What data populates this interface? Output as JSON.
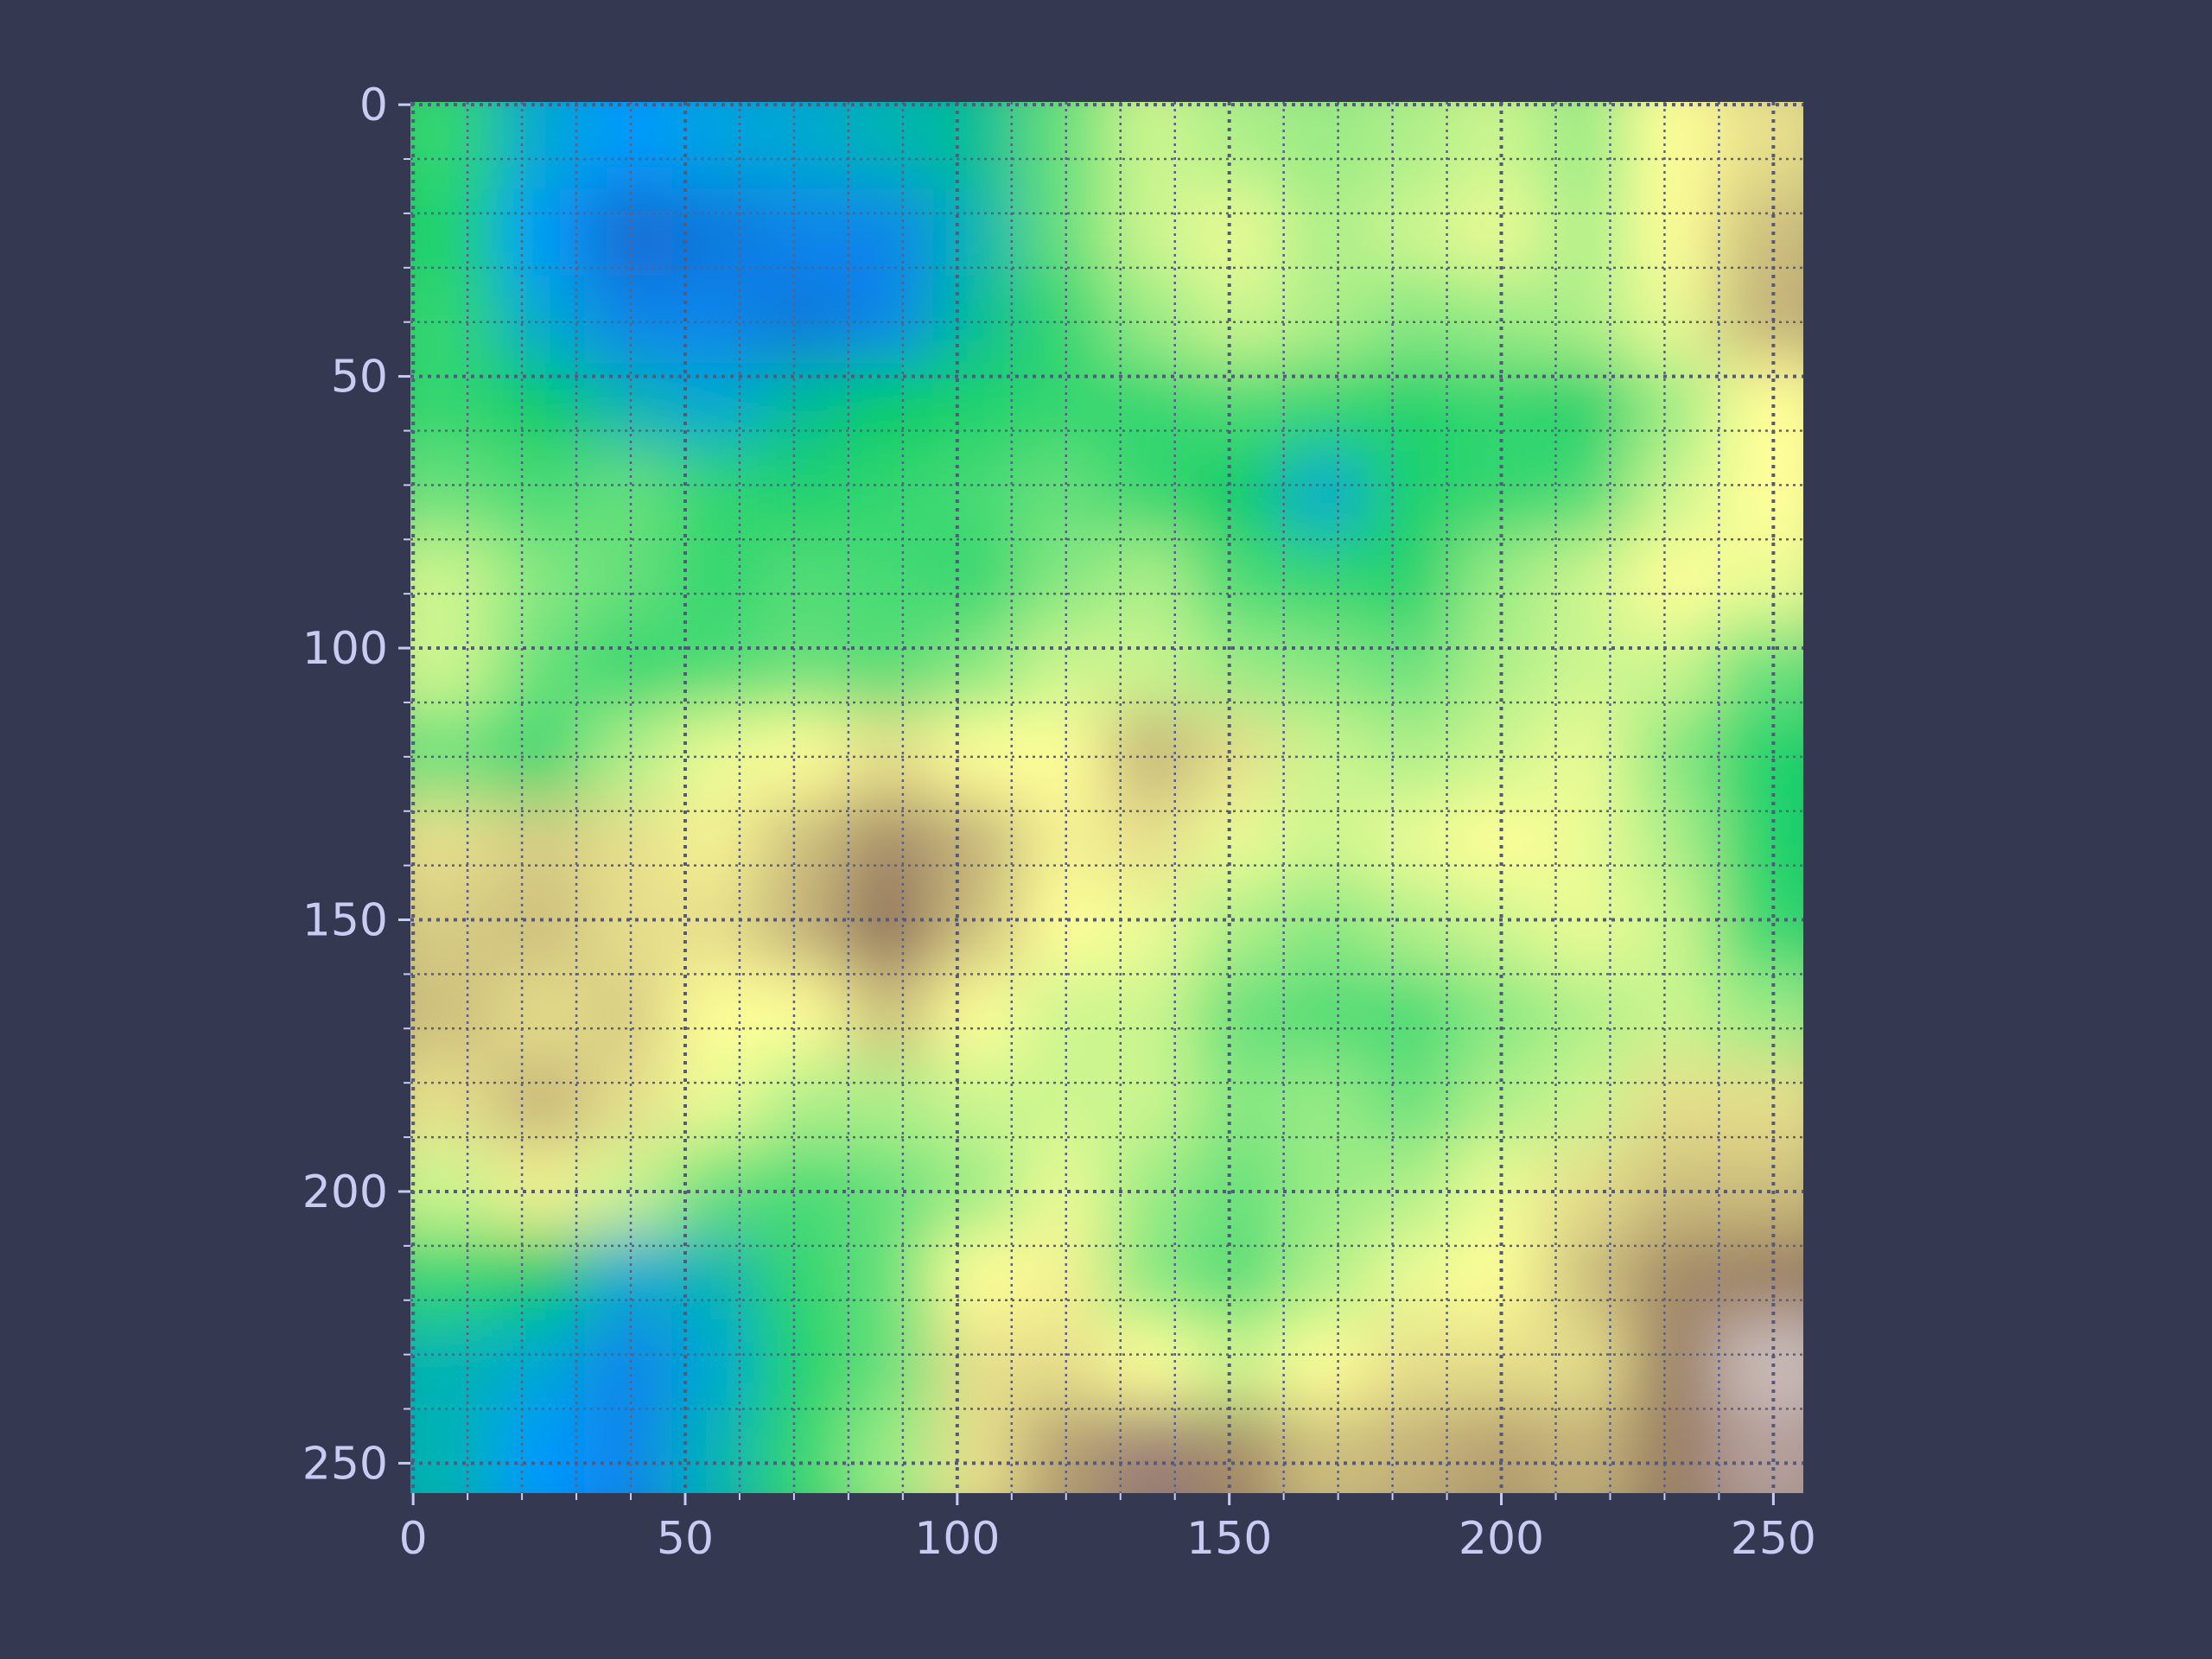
{
  "chart_data": {
    "type": "heatmap",
    "colormap": "terrain",
    "grid": true,
    "xlim": [
      -0.5,
      255.5
    ],
    "ylim": [
      255.5,
      -0.5
    ],
    "xticks": [
      0,
      50,
      100,
      150,
      200,
      250
    ],
    "yticks": [
      0,
      50,
      100,
      150,
      200,
      250
    ],
    "xminorticks": [
      10,
      20,
      30,
      40,
      60,
      70,
      80,
      90,
      110,
      120,
      130,
      140,
      160,
      170,
      180,
      190,
      210,
      220,
      230,
      240
    ],
    "yminorticks": [
      10,
      20,
      30,
      40,
      60,
      70,
      80,
      90,
      110,
      120,
      130,
      140,
      160,
      170,
      180,
      190,
      210,
      220,
      230,
      240
    ],
    "values": [
      [
        0.3,
        0.18,
        0.15,
        0.17,
        0.18,
        0.2,
        0.22,
        0.35,
        0.45,
        0.42,
        0.4,
        0.42,
        0.45,
        0.4,
        0.5,
        0.55
      ],
      [
        0.28,
        0.15,
        0.08,
        0.1,
        0.12,
        0.12,
        0.2,
        0.35,
        0.45,
        0.48,
        0.42,
        0.45,
        0.48,
        0.42,
        0.5,
        0.6
      ],
      [
        0.3,
        0.18,
        0.12,
        0.12,
        0.1,
        0.12,
        0.22,
        0.3,
        0.4,
        0.45,
        0.42,
        0.38,
        0.4,
        0.42,
        0.48,
        0.62
      ],
      [
        0.3,
        0.25,
        0.2,
        0.18,
        0.22,
        0.25,
        0.28,
        0.3,
        0.3,
        0.32,
        0.3,
        0.28,
        0.3,
        0.27,
        0.4,
        0.5
      ],
      [
        0.35,
        0.32,
        0.35,
        0.3,
        0.28,
        0.3,
        0.32,
        0.35,
        0.3,
        0.25,
        0.18,
        0.28,
        0.3,
        0.32,
        0.45,
        0.5
      ],
      [
        0.45,
        0.38,
        0.35,
        0.3,
        0.33,
        0.32,
        0.3,
        0.38,
        0.42,
        0.32,
        0.3,
        0.28,
        0.4,
        0.45,
        0.5,
        0.48
      ],
      [
        0.45,
        0.35,
        0.3,
        0.32,
        0.35,
        0.33,
        0.38,
        0.45,
        0.45,
        0.4,
        0.38,
        0.35,
        0.42,
        0.45,
        0.45,
        0.35
      ],
      [
        0.35,
        0.3,
        0.42,
        0.48,
        0.5,
        0.55,
        0.5,
        0.5,
        0.62,
        0.55,
        0.45,
        0.42,
        0.45,
        0.48,
        0.38,
        0.28
      ],
      [
        0.55,
        0.58,
        0.55,
        0.52,
        0.6,
        0.68,
        0.62,
        0.52,
        0.55,
        0.48,
        0.45,
        0.48,
        0.5,
        0.48,
        0.42,
        0.28
      ],
      [
        0.58,
        0.6,
        0.55,
        0.55,
        0.62,
        0.72,
        0.6,
        0.5,
        0.48,
        0.42,
        0.38,
        0.42,
        0.45,
        0.48,
        0.45,
        0.3
      ],
      [
        0.6,
        0.55,
        0.58,
        0.5,
        0.5,
        0.6,
        0.5,
        0.45,
        0.45,
        0.35,
        0.33,
        0.32,
        0.38,
        0.42,
        0.45,
        0.4
      ],
      [
        0.55,
        0.62,
        0.55,
        0.48,
        0.42,
        0.42,
        0.45,
        0.45,
        0.45,
        0.38,
        0.4,
        0.35,
        0.42,
        0.45,
        0.55,
        0.55
      ],
      [
        0.45,
        0.52,
        0.45,
        0.35,
        0.32,
        0.35,
        0.4,
        0.48,
        0.4,
        0.35,
        0.4,
        0.42,
        0.48,
        0.55,
        0.6,
        0.6
      ],
      [
        0.3,
        0.25,
        0.18,
        0.2,
        0.3,
        0.35,
        0.5,
        0.52,
        0.38,
        0.33,
        0.42,
        0.48,
        0.5,
        0.6,
        0.68,
        0.7
      ],
      [
        0.2,
        0.18,
        0.12,
        0.18,
        0.28,
        0.35,
        0.55,
        0.55,
        0.5,
        0.45,
        0.5,
        0.55,
        0.55,
        0.55,
        0.7,
        0.9
      ],
      [
        0.2,
        0.15,
        0.12,
        0.2,
        0.3,
        0.4,
        0.55,
        0.65,
        0.8,
        0.68,
        0.6,
        0.62,
        0.65,
        0.62,
        0.7,
        0.85
      ]
    ]
  }
}
